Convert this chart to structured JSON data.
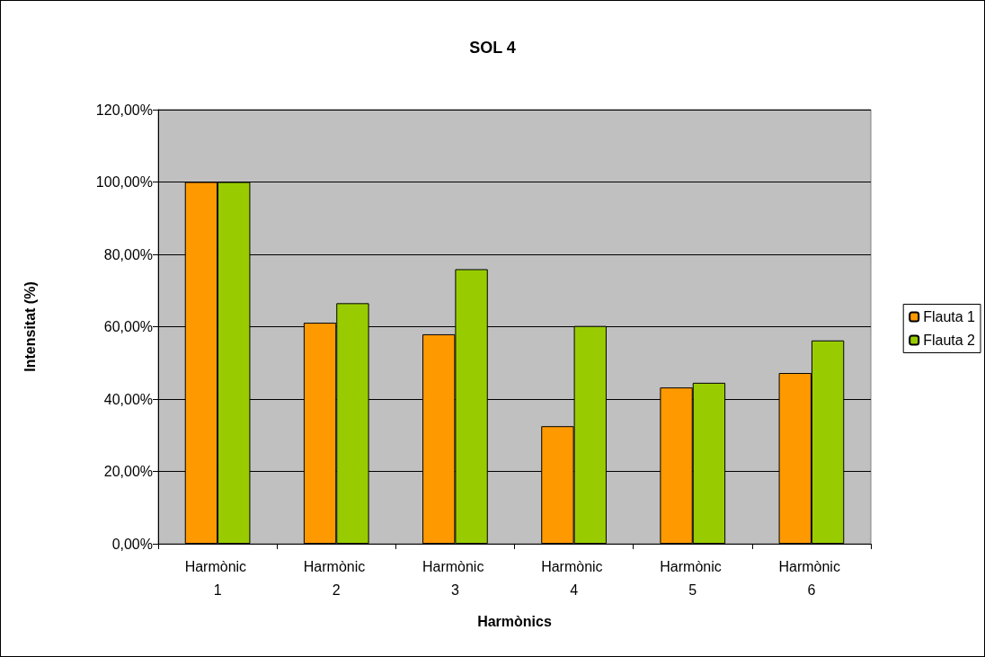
{
  "chart_data": {
    "type": "bar",
    "title": "SOL 4",
    "xlabel": "Harmònics",
    "ylabel": "Intensitat (%)",
    "categories": [
      "Harmònic 1",
      "Harmònic 2",
      "Harmònic 3",
      "Harmònic 4",
      "Harmònic 5",
      "Harmònic 6"
    ],
    "series": [
      {
        "name": "Flauta 1",
        "color": "#ff9900",
        "values": [
          100,
          61.1,
          57.9,
          32.5,
          43.2,
          47.2
        ]
      },
      {
        "name": "Flauta 2",
        "color": "#99cc00",
        "values": [
          100,
          66.5,
          75.9,
          60.2,
          44.5,
          56.2
        ]
      }
    ],
    "ylim": [
      0,
      120
    ],
    "yticks": [
      {
        "value": 0,
        "label": "0,00%"
      },
      {
        "value": 20,
        "label": "20,00%"
      },
      {
        "value": 40,
        "label": "40,00%"
      },
      {
        "value": 60,
        "label": "60,00%"
      },
      {
        "value": 80,
        "label": "80,00%"
      },
      {
        "value": 100,
        "label": "100,00%"
      },
      {
        "value": 120,
        "label": "120,00%"
      }
    ],
    "grid": "y",
    "legend": "right"
  }
}
